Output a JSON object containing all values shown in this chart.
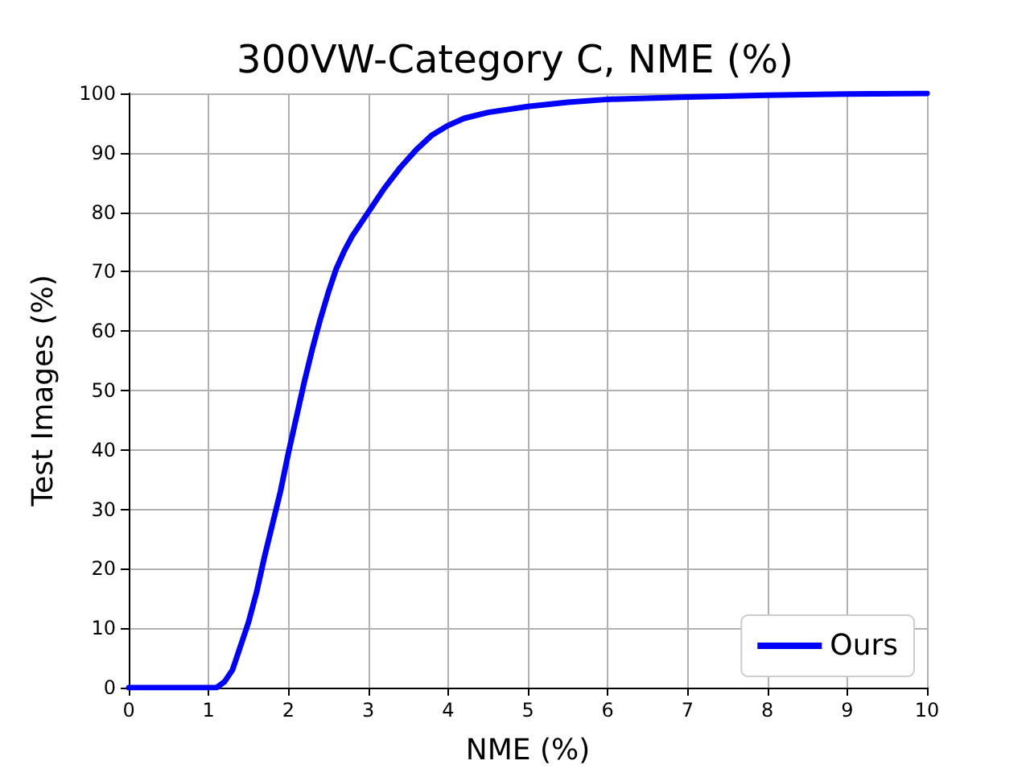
{
  "chart_data": {
    "type": "line",
    "title": "300VW-Category C, NME (%)",
    "xlabel": "NME (%)",
    "ylabel": "Test Images (%)",
    "series": [
      {
        "name": "Ours",
        "color": "#0000ff",
        "x": [
          0,
          1.1,
          1.2,
          1.3,
          1.4,
          1.5,
          1.6,
          1.7,
          1.8,
          1.9,
          2,
          2.1,
          2.2,
          2.3,
          2.4,
          2.5,
          2.6,
          2.7,
          2.8,
          2.9,
          3,
          3.2,
          3.4,
          3.6,
          3.8,
          4,
          4.2,
          4.5,
          5,
          5.5,
          6,
          7,
          8,
          9,
          10
        ],
        "values": [
          0,
          0,
          1,
          3,
          7,
          11,
          16,
          22,
          27.5,
          33,
          39.5,
          45.5,
          51.5,
          57,
          62,
          66.5,
          70.5,
          73.5,
          76,
          78,
          80,
          84,
          87.5,
          90.5,
          93,
          94.6,
          95.8,
          96.8,
          97.8,
          98.5,
          99,
          99.4,
          99.7,
          99.9,
          100
        ]
      }
    ],
    "xlim": [
      0,
      10
    ],
    "xticks": [
      0,
      1,
      2,
      3,
      4,
      5,
      6,
      7,
      8,
      9,
      10
    ],
    "ylim": [
      0,
      100
    ],
    "yticks": [
      0,
      10,
      20,
      30,
      40,
      50,
      60,
      70,
      80,
      90,
      100
    ],
    "grid": true,
    "legend": "bottom right",
    "marker": "none",
    "line_style": "solid"
  }
}
